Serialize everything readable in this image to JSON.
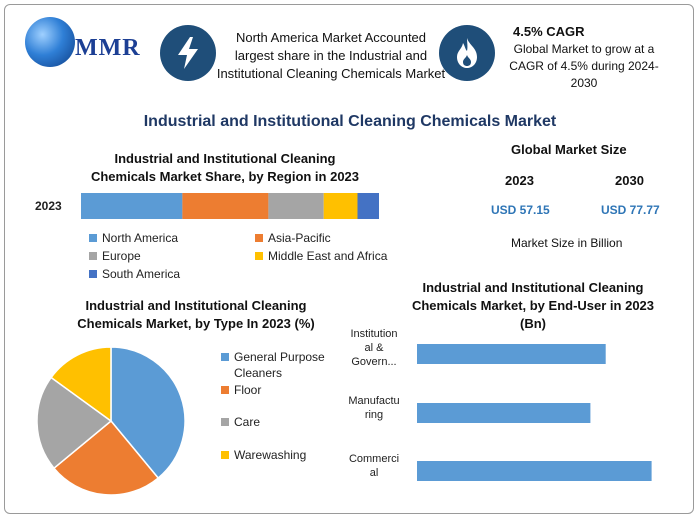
{
  "logo": {
    "text": "MMR"
  },
  "highlight": {
    "text_lines": [
      "North America Market Accounted",
      "largest share in the Industrial and",
      "Institutional Cleaning Chemicals Market"
    ]
  },
  "cagr": {
    "title": "4.5% CAGR",
    "text_lines": [
      "Global Market to grow at a",
      "CAGR of 4.5% during 2024-",
      "2030"
    ]
  },
  "main_title": "Industrial and Institutional Cleaning Chemicals Market",
  "market_size": {
    "title": "Global Market Size",
    "years": [
      "2023",
      "2030"
    ],
    "values": [
      "USD 57.15",
      "USD 77.77"
    ],
    "unit_label": "Market Size in Billion"
  },
  "colors": {
    "blue": "#5b9bd5",
    "orange": "#ed7d31",
    "gray": "#a5a5a5",
    "yellow": "#ffc000",
    "darkblue": "#4472c4",
    "icon_bg": "#1f4e79"
  },
  "icons": {
    "highlight": "lightning-icon",
    "cagr": "flame-icon",
    "logo": "globe-icon"
  },
  "chart_data": [
    {
      "type": "bar",
      "orientation": "horizontal-stacked",
      "title_lines": [
        "Industrial and Institutional Cleaning",
        "Chemicals Market Share, by Region in 2023"
      ],
      "categories": [
        "2023"
      ],
      "series": [
        {
          "name": "North America",
          "values": [
            33
          ]
        },
        {
          "name": "Asia-Pacific",
          "values": [
            28
          ]
        },
        {
          "name": "Europe",
          "values": [
            18
          ]
        },
        {
          "name": "Middle East and Africa",
          "values": [
            11
          ]
        },
        {
          "name": "South America",
          "values": [
            7
          ]
        }
      ],
      "legend_placement": "bottom"
    },
    {
      "type": "pie",
      "title_lines": [
        "Industrial and Institutional Cleaning",
        "Chemicals Market, by Type In 2023 (%)"
      ],
      "series": [
        {
          "name": "General Purpose Cleaners",
          "value": 39
        },
        {
          "name": "Floor",
          "value": 25
        },
        {
          "name": "Care",
          "value": 21
        },
        {
          "name": "Warewashing",
          "value": 15
        }
      ],
      "legend_placement": "right"
    },
    {
      "type": "bar",
      "orientation": "horizontal",
      "title_lines": [
        "Industrial and Institutional Cleaning",
        "Chemicals Market, by End-User in 2023",
        "(Bn)"
      ],
      "categories": [
        {
          "name": "Institutional & Government",
          "label_lines": [
            "Institution",
            "al &",
            "Govern..."
          ]
        },
        {
          "name": "Manufacturing",
          "label_lines": [
            "Manufactu",
            "ring"
          ]
        },
        {
          "name": "Commercial",
          "label_lines": [
            "Commerci",
            "al"
          ]
        }
      ],
      "values": [
        18.5,
        17,
        23
      ],
      "xlim": [
        0,
        25
      ],
      "grid": false
    }
  ]
}
